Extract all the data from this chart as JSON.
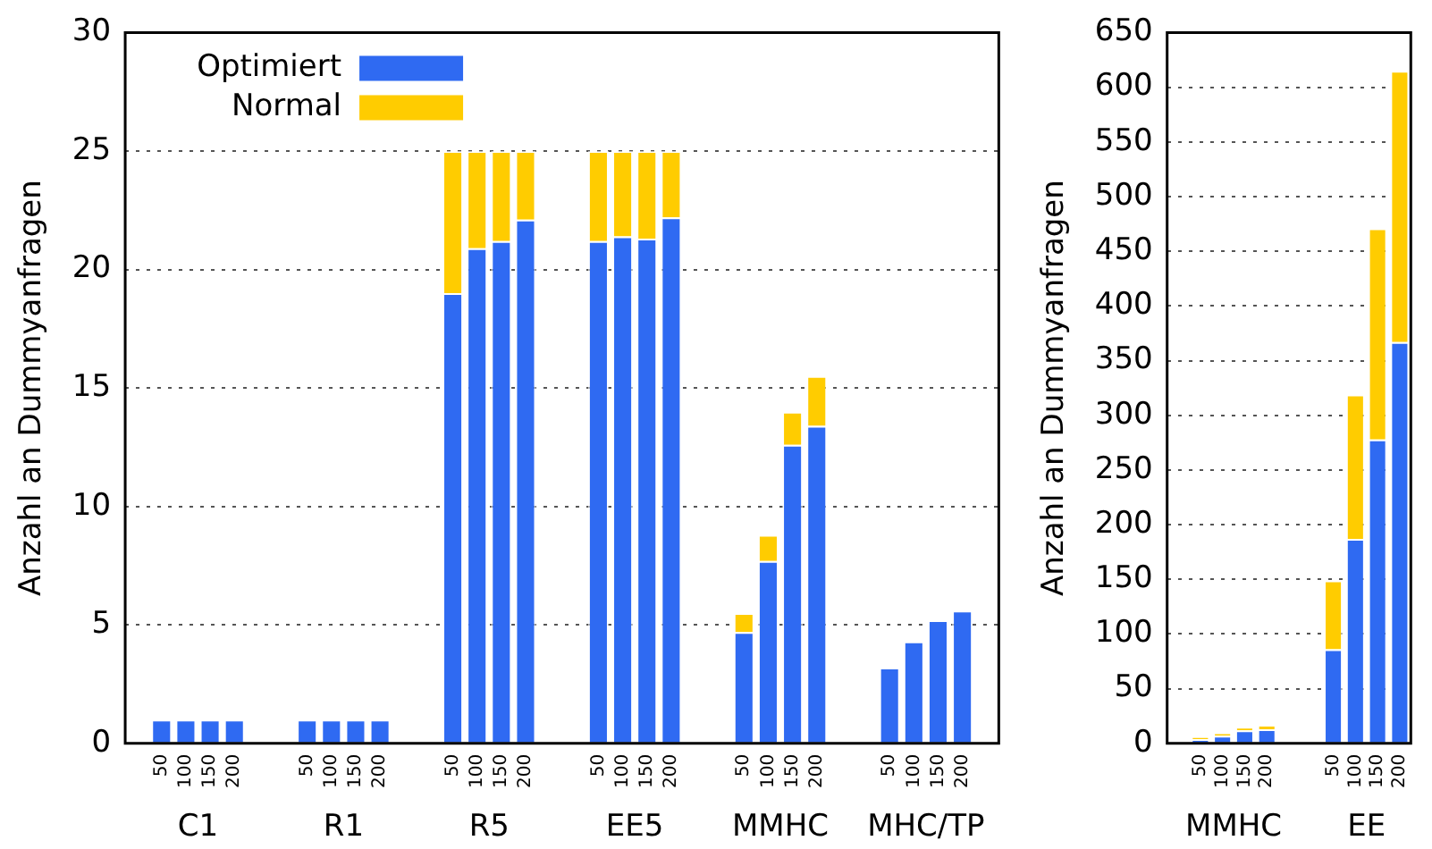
{
  "chart_data": [
    {
      "type": "bar",
      "stacked": true,
      "ylabel": "Anzahl an Dummyanfragen",
      "categories": [
        null,
        "50",
        "100",
        "150",
        "200",
        null,
        null,
        "50",
        "100",
        "150",
        "200",
        null,
        null,
        "50",
        "100",
        "150",
        "200",
        null,
        null,
        "50",
        "100",
        "150",
        "200",
        null,
        null,
        "50",
        "100",
        "150",
        "200",
        null,
        null,
        "50",
        "100",
        "150",
        "200",
        null
      ],
      "series": [
        {
          "name": "Optimiert",
          "color": "#2f6af2",
          "values": [
            null,
            1,
            1,
            1,
            1,
            null,
            null,
            1,
            1,
            1,
            1,
            null,
            null,
            19.0,
            20.9,
            21.2,
            22.1,
            null,
            null,
            21.2,
            21.4,
            21.3,
            22.2,
            null,
            null,
            4.7,
            7.7,
            12.6,
            13.4,
            null,
            null,
            3.2,
            4.3,
            5.2,
            5.6,
            null
          ]
        },
        {
          "name": "Normal",
          "color": "#ffcc00",
          "values": [
            null,
            0,
            0,
            0,
            0,
            null,
            null,
            0,
            0,
            0,
            0,
            null,
            null,
            6.0,
            4.1,
            3.8,
            2.9,
            null,
            null,
            3.8,
            3.6,
            3.7,
            2.8,
            null,
            null,
            0.8,
            1.1,
            1.4,
            2.1,
            null,
            null,
            0,
            0,
            0,
            0,
            null
          ]
        }
      ],
      "annotations": [
        "C1",
        "R1",
        "R5",
        "EE5",
        "MMHC",
        "MHC/TP"
      ],
      "ylim": [
        0,
        30
      ],
      "yticks": [
        0,
        5,
        10,
        15,
        20,
        25,
        30
      ],
      "grid": "y",
      "legend": "top left"
    },
    {
      "type": "bar",
      "stacked": true,
      "ylabel": "Anzahl an Dummyanfragen",
      "categories": [
        null,
        "50",
        "100",
        "150",
        "200",
        null,
        null,
        "50",
        "100",
        "150",
        "200"
      ],
      "series": [
        {
          "color": "#2f6af2",
          "values": [
            null,
            4,
            7,
            12,
            13,
            null,
            null,
            86,
            187,
            278,
            367
          ]
        },
        {
          "color": "#ffcc00",
          "values": [
            null,
            2,
            3,
            3,
            4,
            null,
            null,
            63,
            132,
            193,
            248
          ]
        }
      ],
      "annotations": [
        "MMHC",
        "EE"
      ],
      "ylim": [
        0,
        650
      ],
      "yticks": [
        0,
        50,
        100,
        150,
        200,
        250,
        300,
        350,
        400,
        450,
        500,
        550,
        600,
        650
      ],
      "grid": "y"
    }
  ]
}
